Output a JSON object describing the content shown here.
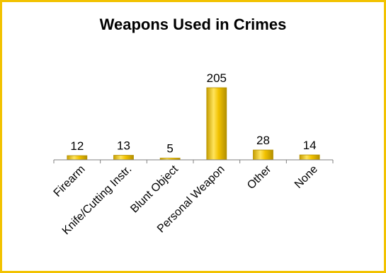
{
  "chart_data": {
    "type": "bar",
    "title": "Weapons Used in Crimes",
    "categories": [
      "Firearm",
      "Knife/Cutting Instr.",
      "Blunt Object",
      "Personal Weapon",
      "Other",
      "None"
    ],
    "values": [
      12,
      13,
      5,
      205,
      28,
      14
    ],
    "data_labels": [
      "12",
      "13",
      "5",
      "205",
      "28",
      "14"
    ],
    "ylim": [
      0,
      205
    ],
    "grid": false,
    "legend": "none",
    "bar_color": "#f2c200",
    "bar_dark_color": "#b38f00",
    "border_color": "#f2c200"
  }
}
